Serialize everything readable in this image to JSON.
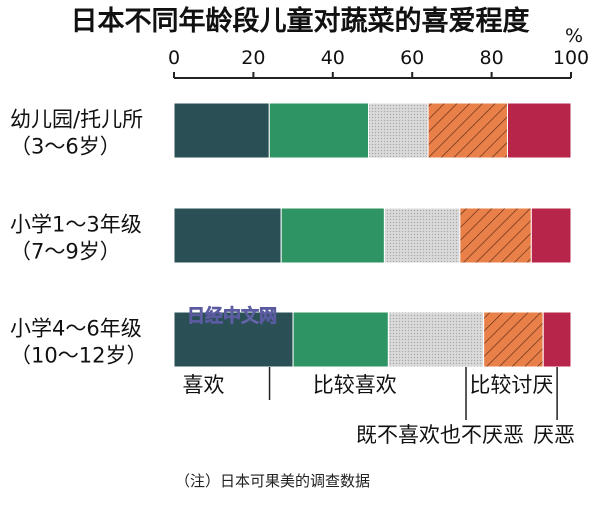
{
  "chart_data": {
    "type": "bar",
    "orientation": "horizontal",
    "stacked": true,
    "title": "日本不同年龄段儿童对蔬菜的喜爱程度",
    "unit": "%",
    "xlim": [
      0,
      100
    ],
    "x_ticks": [
      "0",
      "20",
      "40",
      "60",
      "80",
      "100"
    ],
    "categories": [
      [
        "幼儿园/托儿所",
        "（3～6岁）"
      ],
      [
        "小学1～3年级",
        "（7～9岁）"
      ],
      [
        "小学4～6年级",
        "（10～12岁）"
      ]
    ],
    "series": [
      {
        "name": "喜欢",
        "values": [
          24,
          27,
          30
        ],
        "color": "#2a4f55",
        "pattern": "solid"
      },
      {
        "name": "比较喜欢",
        "values": [
          25,
          26,
          24
        ],
        "color": "#2e9463",
        "pattern": "solid"
      },
      {
        "name": "既不喜欢也不厌恶",
        "values": [
          15,
          19,
          24
        ],
        "color": "#d0d0d0",
        "pattern": "dotted"
      },
      {
        "name": "比较讨厌",
        "values": [
          20,
          18,
          15
        ],
        "color": "#e9804a",
        "pattern": "hatched"
      },
      {
        "name": "厌恶",
        "values": [
          16,
          10,
          7
        ],
        "color": "#b7264a",
        "pattern": "solid"
      }
    ],
    "note": "（注）日本可果美的调查数据"
  },
  "watermark": "日经中文网"
}
